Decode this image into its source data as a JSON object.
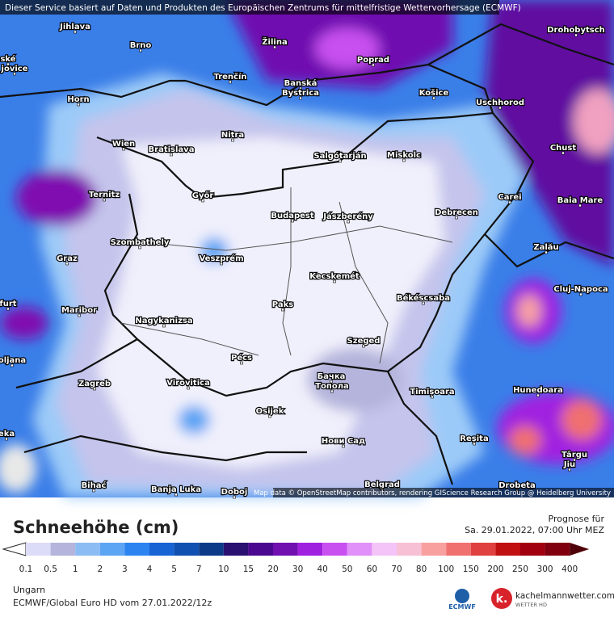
{
  "header": {
    "notice": "Dieser Service basiert auf Daten und Produkten des Europäischen Zentrums für mittelfristige Wettervorhersage (ECMWF)"
  },
  "map": {
    "cities": [
      "Jihlava",
      "Brno",
      "Žilina",
      "Poprad",
      "Drohobytsch",
      "ské",
      "jovice",
      "Trenčín",
      "Banská",
      "Bystrica",
      "Košice",
      "Uschhorod",
      "Horn",
      "Nitra",
      "Chust",
      "Wien",
      "Bratislava",
      "Salgótarján",
      "Miskolc",
      "Ternitz",
      "Győr",
      "Carei",
      "Baia Mare",
      "Budapest",
      "Jászberény",
      "Debrecen",
      "Szombathely",
      "Zalău",
      "Graz",
      "Veszprém",
      "Kecskemét",
      "Cluj-Napoca",
      "Paks",
      "Békéscsaba",
      "furt",
      "Maribor",
      "Nagykanizsa",
      "Szeged",
      "oljana",
      "Pécs",
      "Бачка",
      "Топола",
      "Zagreb",
      "Virovitica",
      "Timișoara",
      "Hunedoara",
      "Osijek",
      "eka",
      "Нови Сад",
      "Reșita",
      "Târgu",
      "Jiu",
      "Belgrad",
      "Bihać",
      "Banja Luka",
      "Doboj",
      "Drobeta"
    ],
    "attribution": "Map data © OpenStreetMap contributors, rendering GIScience Research Group @ Heidelberg University"
  },
  "legend": {
    "title": "Schneehöhe (cm)",
    "forecast_label": "Prognose für",
    "forecast_time": "Sa. 29.01.2022, 07:00 Uhr MEZ",
    "scale": [
      0.1,
      0.5,
      1,
      2,
      3,
      4,
      5,
      7,
      10,
      15,
      20,
      30,
      40,
      50,
      60,
      70,
      80,
      100,
      150,
      200,
      250,
      300,
      400
    ],
    "colors": [
      "#dcdcf8",
      "#b4b4dc",
      "#8cbcf4",
      "#5ca4f4",
      "#2c84f0",
      "#1864d4",
      "#1050b0",
      "#0c3a88",
      "#2a1070",
      "#4a0890",
      "#7010b0",
      "#a020e0",
      "#c850f0",
      "#e090f8",
      "#f4c4f8",
      "#f8c0d4",
      "#f8a0a0",
      "#f07070",
      "#e04040",
      "#c01010",
      "#a00010",
      "#800010",
      "#500008"
    ]
  },
  "footer": {
    "region": "Ungarn",
    "model": "ECMWF/Global Euro HD vom  27.01.2022/12z",
    "ecmwf_logo": "ECMWF",
    "brand": "kachelmannwetter.com",
    "brand_sub": "WETTER HD"
  }
}
